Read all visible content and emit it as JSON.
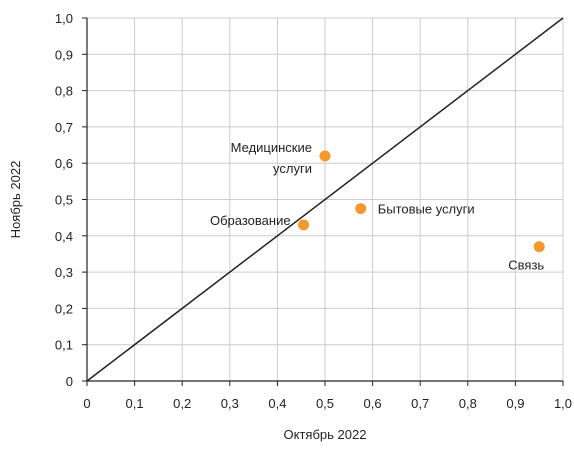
{
  "chart_data": {
    "type": "scatter",
    "xlabel": "Октябрь 2022",
    "ylabel": "Ноябрь 2022",
    "xlim": [
      0,
      1.0
    ],
    "ylim": [
      0,
      1.0
    ],
    "x_ticks": [
      "0",
      "0,1",
      "0,2",
      "0,3",
      "0,4",
      "0,5",
      "0,6",
      "0,7",
      "0,8",
      "0,9",
      "1,0"
    ],
    "y_ticks": [
      "0",
      "0,1",
      "0,2",
      "0,3",
      "0,4",
      "0,5",
      "0,6",
      "0,7",
      "0,8",
      "0,9",
      "1,0"
    ],
    "grid": true,
    "reference_line": {
      "from": [
        0,
        0
      ],
      "to": [
        1.0,
        1.0
      ]
    },
    "points": [
      {
        "label": "Медицинские услуги",
        "label_lines": [
          "Медицинские",
          "услуги"
        ],
        "x": 0.5,
        "y": 0.62,
        "label_side": "left"
      },
      {
        "label": "Бытовые услуги",
        "label_lines": [
          "Бытовые услуги"
        ],
        "x": 0.575,
        "y": 0.475,
        "label_side": "right"
      },
      {
        "label": "Образование",
        "label_lines": [
          "Образование"
        ],
        "x": 0.455,
        "y": 0.43,
        "label_side": "left"
      },
      {
        "label": "Связь",
        "label_lines": [
          "Связь"
        ],
        "x": 0.95,
        "y": 0.37,
        "label_side": "below-left"
      }
    ],
    "colors": {
      "point": "#F29A2E",
      "grid": "#cccccc",
      "axis": "#222222",
      "line": "#222222"
    }
  }
}
